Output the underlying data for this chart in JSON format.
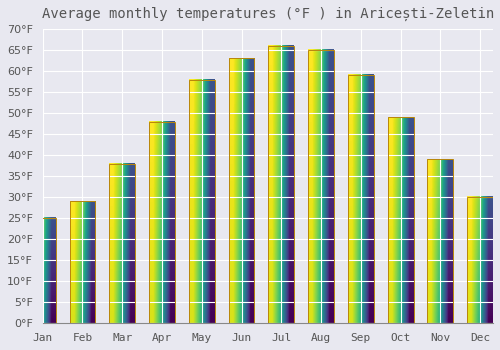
{
  "title": "Average monthly temperatures (°F ) in Aricești-Zeletin",
  "months": [
    "Jan",
    "Feb",
    "Mar",
    "Apr",
    "May",
    "Jun",
    "Jul",
    "Aug",
    "Sep",
    "Oct",
    "Nov",
    "Dec"
  ],
  "values": [
    25,
    29,
    38,
    48,
    58,
    63,
    66,
    65,
    59,
    49,
    39,
    30
  ],
  "bar_color_top": "#FFD040",
  "bar_color_bottom": "#F0A000",
  "bar_edge_color": "#B8860B",
  "background_color": "#E8E8F0",
  "grid_color": "#FFFFFF",
  "text_color": "#555555",
  "ylim": [
    0,
    70
  ],
  "yticks": [
    0,
    5,
    10,
    15,
    20,
    25,
    30,
    35,
    40,
    45,
    50,
    55,
    60,
    65,
    70
  ],
  "title_fontsize": 10,
  "tick_fontsize": 8
}
